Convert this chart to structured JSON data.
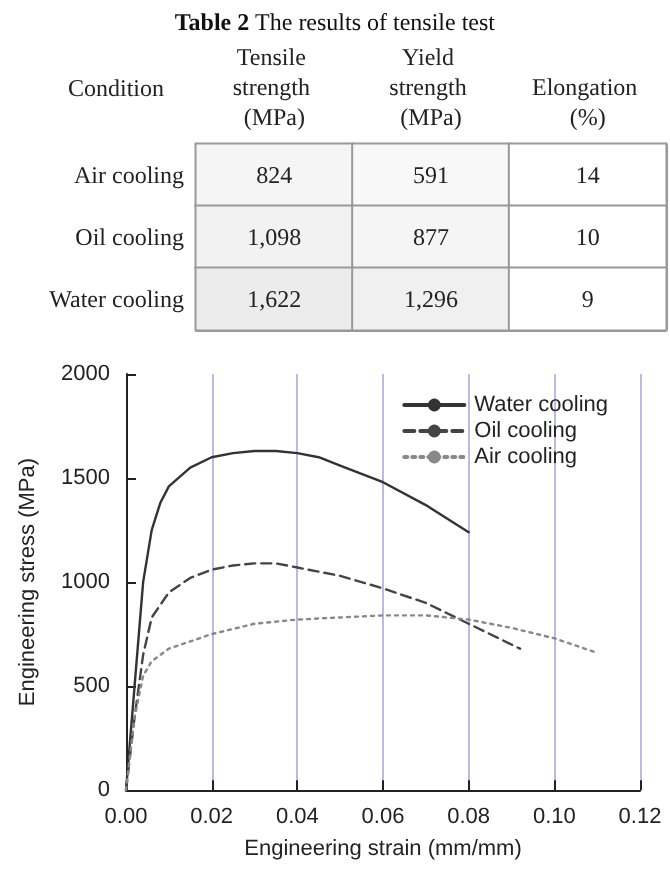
{
  "chart_data": [
    {
      "type": "heatmap",
      "title": "Table 2 The results of tensile test",
      "ylabel": "Condition",
      "categories": [
        "Tensile strength (MPa)",
        "Yield strength (MPa)",
        "Elongation (%)"
      ],
      "y_categories": [
        "Air cooling",
        "Oil cooling",
        "Water cooling"
      ],
      "cells": [
        [
          824,
          591,
          14
        ],
        [
          1098,
          877,
          10
        ],
        [
          1622,
          1296,
          9
        ]
      ],
      "cell_labels": [
        [
          "824",
          "591",
          "14"
        ],
        [
          "1,098",
          "877",
          "10"
        ],
        [
          "1,622",
          "1,296",
          "9"
        ]
      ]
    },
    {
      "type": "line",
      "xlabel": "Engineering strain (mm/mm)",
      "ylabel": "Engineering stress (MPa)",
      "xlim": [
        0,
        0.12
      ],
      "xticks": [
        {
          "value": 0,
          "label": "0.00"
        },
        {
          "value": 0.02,
          "label": "0.02"
        },
        {
          "value": 0.04,
          "label": "0.04"
        },
        {
          "value": 0.06,
          "label": "0.06"
        },
        {
          "value": 0.08,
          "label": "0.08"
        },
        {
          "value": 0.1,
          "label": "0.10"
        },
        {
          "value": 0.12,
          "label": "0.12"
        }
      ],
      "ylim": [
        0,
        2000
      ],
      "yticks": [
        0,
        500,
        1000,
        1500,
        2000
      ],
      "grid": "x",
      "legend": "top right",
      "marker": "none",
      "series": [
        {
          "name": "Water cooling",
          "color": "#333333",
          "line_style": "solid",
          "x": [
            0,
            0.002,
            0.004,
            0.006,
            0.008,
            0.01,
            0.015,
            0.02,
            0.025,
            0.03,
            0.035,
            0.04,
            0.045,
            0.05,
            0.06,
            0.07,
            0.08
          ],
          "values": [
            0,
            500,
            1000,
            1250,
            1380,
            1460,
            1550,
            1600,
            1620,
            1630,
            1630,
            1620,
            1600,
            1560,
            1480,
            1370,
            1240
          ]
        },
        {
          "name": "Oil cooling",
          "color": "#444444",
          "line_style": "dashed",
          "x": [
            0,
            0.002,
            0.004,
            0.006,
            0.01,
            0.015,
            0.02,
            0.025,
            0.03,
            0.035,
            0.04,
            0.05,
            0.06,
            0.07,
            0.08,
            0.09,
            0.092
          ],
          "values": [
            0,
            350,
            650,
            830,
            950,
            1020,
            1060,
            1080,
            1090,
            1090,
            1070,
            1030,
            970,
            900,
            800,
            700,
            680
          ]
        },
        {
          "name": "Air cooling",
          "color": "#888888",
          "line_style": "dotted",
          "x": [
            0,
            0.002,
            0.004,
            0.006,
            0.01,
            0.02,
            0.03,
            0.04,
            0.05,
            0.06,
            0.07,
            0.08,
            0.09,
            0.1,
            0.11
          ],
          "values": [
            0,
            350,
            550,
            620,
            680,
            750,
            800,
            820,
            830,
            840,
            840,
            820,
            780,
            730,
            660
          ]
        }
      ]
    }
  ]
}
